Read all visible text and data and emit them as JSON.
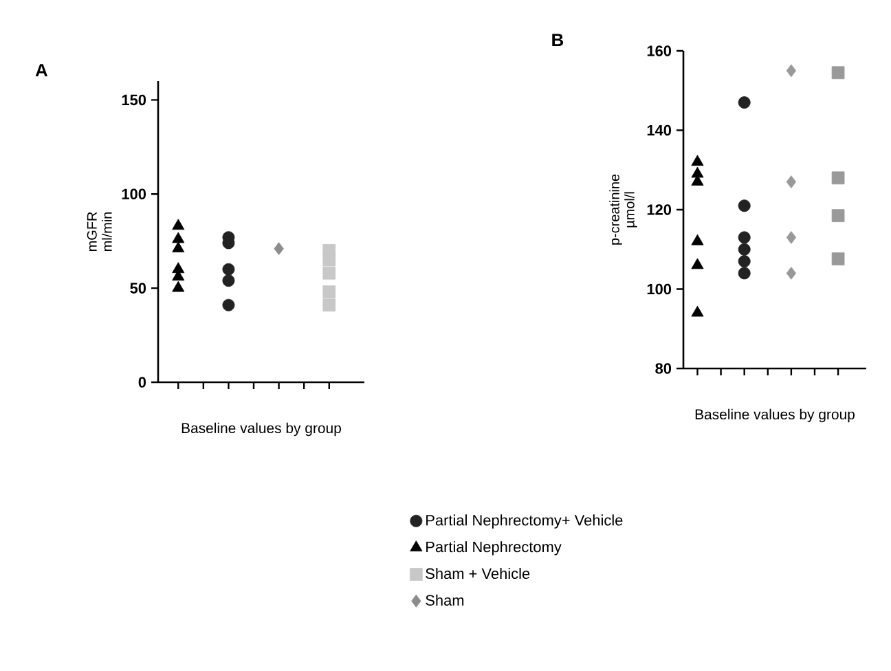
{
  "chart_data": [
    {
      "type": "scatter",
      "title": "A",
      "xlabel": "Baseline values by group",
      "ylabel": "mGFR ml/min",
      "categories": [
        null,
        null,
        null,
        null
      ],
      "ylim": [
        0,
        160
      ],
      "yticks": [
        0,
        50,
        100,
        150
      ],
      "legend": "bottom",
      "series": [
        {
          "name": "Partial Nephrectomy+ Vehicle",
          "marker": "circle",
          "color": "#222222",
          "values": [
            null,
            77,
            null,
            null
          ]
        },
        {
          "marker": "circle",
          "color": "#222222",
          "values": [
            null,
            74,
            null,
            null
          ]
        },
        {
          "marker": "circle",
          "color": "#222222",
          "values": [
            null,
            60,
            null,
            null
          ]
        },
        {
          "marker": "circle",
          "color": "#222222",
          "values": [
            null,
            54,
            null,
            null
          ]
        },
        {
          "marker": "circle",
          "color": "#222222",
          "values": [
            null,
            41,
            null,
            null
          ]
        },
        {
          "name": "Partial Nephrectomy",
          "marker": "triangle",
          "color": "#000000",
          "values": [
            83,
            null,
            null,
            null
          ]
        },
        {
          "marker": "triangle",
          "color": "#000000",
          "values": [
            76,
            null,
            null,
            null
          ]
        },
        {
          "marker": "triangle",
          "color": "#000000",
          "values": [
            71,
            null,
            null,
            null
          ]
        },
        {
          "marker": "triangle",
          "color": "#000000",
          "values": [
            60,
            null,
            null,
            null
          ]
        },
        {
          "marker": "triangle",
          "color": "#000000",
          "values": [
            56,
            null,
            null,
            null
          ]
        },
        {
          "marker": "triangle",
          "color": "#000000",
          "values": [
            50,
            null,
            null,
            null
          ]
        },
        {
          "name": "Sham + Vehicle",
          "marker": "square",
          "color": "#c8c8c8",
          "values": [
            null,
            null,
            null,
            70
          ]
        },
        {
          "marker": "square",
          "color": "#c8c8c8",
          "values": [
            null,
            null,
            null,
            65
          ]
        },
        {
          "marker": "square",
          "color": "#c8c8c8",
          "values": [
            null,
            null,
            null,
            58
          ]
        },
        {
          "marker": "square",
          "color": "#c8c8c8",
          "values": [
            null,
            null,
            null,
            48
          ]
        },
        {
          "marker": "square",
          "color": "#c8c8c8",
          "values": [
            null,
            null,
            null,
            41
          ]
        },
        {
          "name": "Sham",
          "marker": "diamond",
          "color": "#8c8c8c",
          "values": [
            null,
            null,
            71,
            null
          ]
        }
      ]
    },
    {
      "type": "scatter",
      "title": "B",
      "xlabel": "Baseline values by group",
      "ylabel": "p-creatinine µmol/l",
      "categories": [
        null,
        null,
        null,
        null
      ],
      "ylim": [
        80,
        160
      ],
      "yticks": [
        80,
        100,
        120,
        140,
        160
      ],
      "series": [
        {
          "marker": "circle",
          "color": "#222222",
          "values": [
            null,
            147,
            null,
            null
          ]
        },
        {
          "marker": "circle",
          "color": "#222222",
          "values": [
            null,
            121,
            null,
            null
          ]
        },
        {
          "marker": "circle",
          "color": "#222222",
          "values": [
            null,
            113,
            null,
            null
          ]
        },
        {
          "marker": "circle",
          "color": "#222222",
          "values": [
            null,
            110,
            null,
            null
          ]
        },
        {
          "marker": "circle",
          "color": "#222222",
          "values": [
            null,
            107,
            null,
            null
          ]
        },
        {
          "marker": "circle",
          "color": "#222222",
          "values": [
            null,
            104,
            null,
            null
          ]
        },
        {
          "marker": "triangle",
          "color": "#000000",
          "values": [
            132,
            null,
            null,
            null
          ]
        },
        {
          "marker": "triangle",
          "color": "#000000",
          "values": [
            129,
            null,
            null,
            null
          ]
        },
        {
          "marker": "triangle",
          "color": "#000000",
          "values": [
            127,
            null,
            null,
            null
          ]
        },
        {
          "marker": "triangle",
          "color": "#000000",
          "values": [
            112,
            null,
            null,
            null
          ]
        },
        {
          "marker": "triangle",
          "color": "#000000",
          "values": [
            106,
            null,
            null,
            null
          ]
        },
        {
          "marker": "triangle",
          "color": "#000000",
          "values": [
            94,
            null,
            null,
            null
          ]
        },
        {
          "marker": "square",
          "color": "#999999",
          "values": [
            null,
            null,
            null,
            154.5
          ]
        },
        {
          "marker": "square",
          "color": "#999999",
          "values": [
            null,
            null,
            null,
            128
          ]
        },
        {
          "marker": "square",
          "color": "#999999",
          "values": [
            null,
            null,
            null,
            118.5
          ]
        },
        {
          "marker": "square",
          "color": "#999999",
          "values": [
            null,
            null,
            null,
            107.6
          ]
        },
        {
          "marker": "diamond",
          "color": "#999999",
          "values": [
            null,
            null,
            155,
            null
          ]
        },
        {
          "marker": "diamond",
          "color": "#999999",
          "values": [
            null,
            null,
            127,
            null
          ]
        },
        {
          "marker": "diamond",
          "color": "#999999",
          "values": [
            null,
            null,
            113,
            null
          ]
        },
        {
          "marker": "diamond",
          "color": "#999999",
          "values": [
            null,
            null,
            104,
            null
          ]
        }
      ]
    }
  ]
}
